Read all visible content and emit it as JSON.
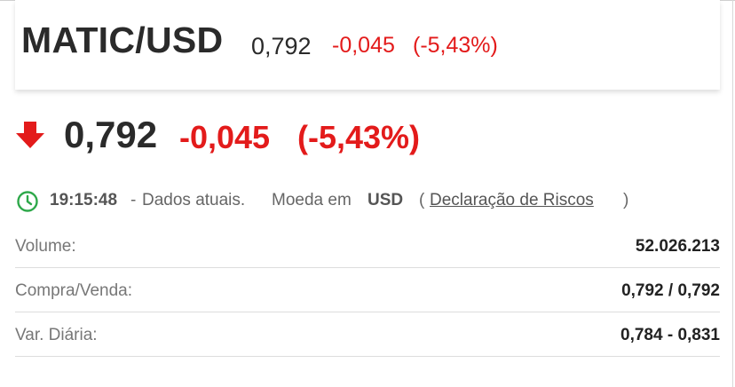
{
  "header": {
    "pair": "MATIC/USD",
    "price": "0,792",
    "change": "-0,045",
    "change_pct": "(-5,43%)"
  },
  "quote": {
    "direction_icon": "arrow-down-icon",
    "price": "0,792",
    "change": "-0,045",
    "change_pct": "(-5,43%)"
  },
  "status": {
    "icon": "clock-icon",
    "time": "19:15:48",
    "separator": "-",
    "live_label": "Dados atuais.",
    "currency_label": "Moeda em",
    "currency_code": "USD",
    "paren_open": "(",
    "risk_link": "Declaração de Riscos",
    "paren_close": ")"
  },
  "stats": [
    {
      "label": "Volume:",
      "value": "52.026.213"
    },
    {
      "label": "Compra/Venda:",
      "value": "0,792 / 0,792"
    },
    {
      "label": "Var. Diária:",
      "value": "0,784 - 0,831"
    }
  ],
  "colors": {
    "negative": "#e31b1b",
    "clock": "#2ea84a",
    "text": "#222222"
  }
}
